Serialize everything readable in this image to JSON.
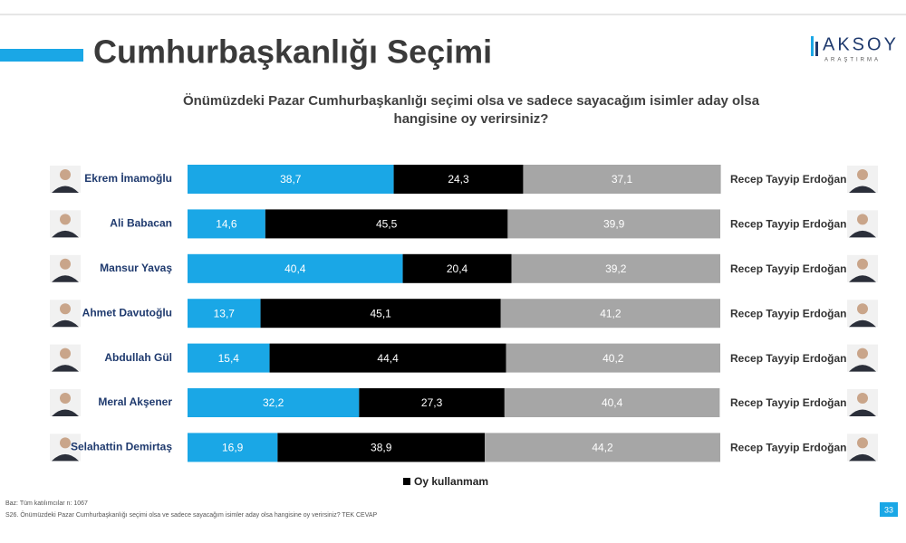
{
  "header": {
    "title": "Cumhurbaşkanlığı Seçimi",
    "logo": "AKSOY",
    "logo_sub": "ARAŞTIRMA"
  },
  "chart_data": {
    "type": "stacked-bar-horizontal",
    "subtitle": [
      "Önümüzdeki Pazar Cumhurbaşkanlığı seçimi olsa ve sadece sayacağım isimler aday olsa",
      "hangisine oy verirsiniz?"
    ],
    "categories": [
      "Ekrem İmamoğlu",
      "Ali Babacan",
      "Mansur Yavaş",
      "Ahmet Davutoğlu",
      "Abdullah Gül",
      "Meral Akşener",
      "Selahattin Demirtaş"
    ],
    "right_labels": [
      "Recep Tayyip Erdoğan",
      "Recep Tayyip Erdoğan",
      "Recep Tayyip Erdoğan",
      "Recep Tayyip Erdoğan",
      "Recep Tayyip Erdoğan",
      "Recep Tayyip Erdoğan",
      "Recep Tayyip Erdoğan"
    ],
    "xlim": [
      0,
      100
    ],
    "series": [
      {
        "color": "#1aa7e6",
        "values": [
          38.7,
          14.6,
          40.4,
          13.7,
          15.4,
          32.2,
          16.9
        ],
        "value_labels": [
          "38,7",
          "14,6",
          "40,4",
          "13,7",
          "15,4",
          "32,2",
          "16,9"
        ]
      },
      {
        "name": "Oy kullanmam",
        "color": "#000000",
        "values": [
          24.3,
          45.5,
          20.4,
          45.1,
          44.4,
          27.3,
          38.9
        ],
        "value_labels": [
          "24,3",
          "45,5",
          "20,4",
          "45,1",
          "44,4",
          "27,3",
          "38,9"
        ]
      },
      {
        "color": "#a6a6a6",
        "values": [
          37.1,
          39.9,
          39.2,
          41.2,
          40.2,
          40.4,
          44.2
        ],
        "value_labels": [
          "37,1",
          "39,9",
          "39,2",
          "41,2",
          "40,2",
          "40,4",
          "44,2"
        ]
      }
    ]
  },
  "footer": {
    "base": "Baz: Tüm katılımcılar n: 1067",
    "question": "S26. Önümüzdeki Pazar Cumhurbaşkanlığı seçimi olsa ve sadece sayacağım isimler aday olsa hangisine oy verirsiniz? TEK CEVAP",
    "page": "33"
  }
}
